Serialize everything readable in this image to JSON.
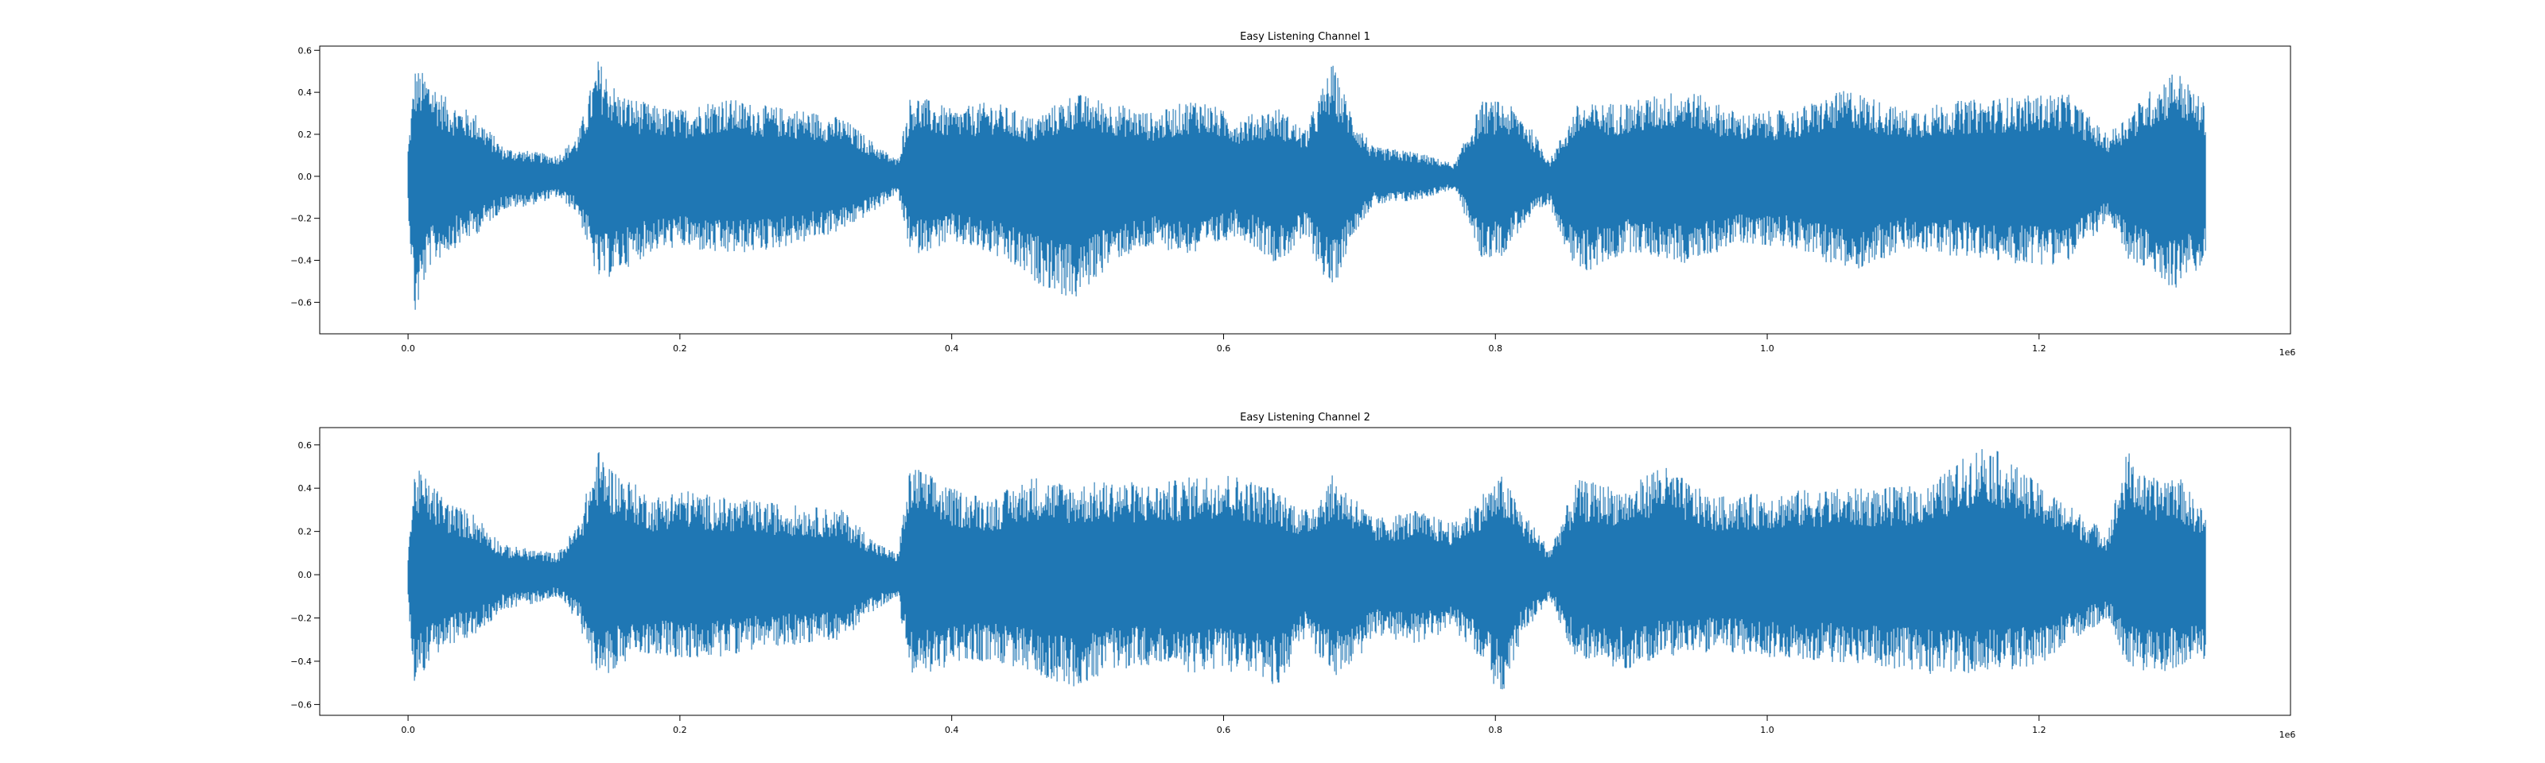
{
  "chart_data": [
    {
      "type": "line",
      "title": "Easy Listening Channel 1",
      "xlabel": "",
      "ylabel": "",
      "x_offset_label": "1e6",
      "xlim": [
        -65000,
        1385000
      ],
      "ylim": [
        -0.75,
        0.62
      ],
      "x_ticks": [
        0.0,
        0.2,
        0.4,
        0.6,
        0.8,
        1.0,
        1.2
      ],
      "x_tick_labels": [
        "0.0",
        "0.2",
        "0.4",
        "0.6",
        "0.8",
        "1.0",
        "1.2"
      ],
      "y_ticks": [
        -0.6,
        -0.4,
        -0.2,
        0.0,
        0.2,
        0.4,
        0.6
      ],
      "y_tick_labels": [
        "−0.6",
        "−0.4",
        "−0.2",
        "0.0",
        "0.2",
        "0.4",
        "0.6"
      ],
      "grid": false,
      "color": "#1f77b4",
      "series": [
        {
          "x_start": 0,
          "x_end": 1323000,
          "envelope_x": [
            0,
            5000,
            15000,
            30000,
            50000,
            70000,
            90000,
            110000,
            125000,
            140000,
            155000,
            180000,
            200000,
            230000,
            260000,
            290000,
            320000,
            345000,
            360000,
            370000,
            400000,
            430000,
            460000,
            490000,
            520000,
            550000,
            580000,
            610000,
            640000,
            660000,
            680000,
            695000,
            710000,
            740000,
            770000,
            790000,
            805000,
            820000,
            840000,
            860000,
            900000,
            940000,
            980000,
            1020000,
            1060000,
            1100000,
            1140000,
            1180000,
            1220000,
            1250000,
            1265000,
            1280000,
            1300000,
            1323000
          ],
          "envelope_max": [
            0.14,
            0.52,
            0.48,
            0.36,
            0.3,
            0.14,
            0.12,
            0.1,
            0.2,
            0.56,
            0.4,
            0.34,
            0.32,
            0.38,
            0.34,
            0.32,
            0.28,
            0.15,
            0.08,
            0.4,
            0.32,
            0.36,
            0.28,
            0.4,
            0.35,
            0.3,
            0.38,
            0.28,
            0.33,
            0.22,
            0.54,
            0.3,
            0.14,
            0.12,
            0.06,
            0.36,
            0.36,
            0.3,
            0.08,
            0.34,
            0.36,
            0.42,
            0.3,
            0.32,
            0.42,
            0.32,
            0.36,
            0.38,
            0.4,
            0.2,
            0.3,
            0.4,
            0.52,
            0.34
          ],
          "envelope_min": [
            -0.15,
            -0.69,
            -0.44,
            -0.36,
            -0.28,
            -0.16,
            -0.14,
            -0.1,
            -0.18,
            -0.51,
            -0.46,
            -0.36,
            -0.34,
            -0.38,
            -0.36,
            -0.32,
            -0.26,
            -0.16,
            -0.08,
            -0.38,
            -0.32,
            -0.38,
            -0.5,
            -0.6,
            -0.4,
            -0.34,
            -0.38,
            -0.28,
            -0.42,
            -0.3,
            -0.56,
            -0.28,
            -0.14,
            -0.12,
            -0.06,
            -0.4,
            -0.38,
            -0.24,
            -0.14,
            -0.48,
            -0.36,
            -0.42,
            -0.32,
            -0.34,
            -0.46,
            -0.36,
            -0.38,
            -0.42,
            -0.42,
            -0.22,
            -0.4,
            -0.46,
            -0.54,
            -0.42
          ]
        }
      ]
    },
    {
      "type": "line",
      "title": "Easy Listening Channel 2",
      "xlabel": "",
      "ylabel": "",
      "x_offset_label": "1e6",
      "xlim": [
        -65000,
        1385000
      ],
      "ylim": [
        -0.65,
        0.68
      ],
      "x_ticks": [
        0.0,
        0.2,
        0.4,
        0.6,
        0.8,
        1.0,
        1.2
      ],
      "x_tick_labels": [
        "0.0",
        "0.2",
        "0.4",
        "0.6",
        "0.8",
        "1.0",
        "1.2"
      ],
      "y_ticks": [
        -0.6,
        -0.4,
        -0.2,
        0.0,
        0.2,
        0.4,
        0.6
      ],
      "y_tick_labels": [
        "−0.6",
        "−0.4",
        "−0.2",
        "0.0",
        "0.2",
        "0.4",
        "0.6"
      ],
      "grid": false,
      "color": "#1f77b4",
      "series": [
        {
          "x_start": 0,
          "x_end": 1323000,
          "envelope_x": [
            0,
            5000,
            15000,
            30000,
            50000,
            70000,
            90000,
            110000,
            125000,
            140000,
            150000,
            180000,
            200000,
            230000,
            260000,
            290000,
            320000,
            345000,
            360000,
            370000,
            400000,
            430000,
            460000,
            490000,
            520000,
            550000,
            580000,
            600000,
            640000,
            660000,
            680000,
            695000,
            710000,
            740000,
            770000,
            790000,
            805000,
            820000,
            840000,
            860000,
            900000,
            920000,
            960000,
            1000000,
            1040000,
            1080000,
            1120000,
            1160000,
            1200000,
            1250000,
            1265000,
            1280000,
            1300000,
            1323000
          ],
          "envelope_max": [
            0.12,
            0.5,
            0.44,
            0.34,
            0.28,
            0.14,
            0.12,
            0.1,
            0.24,
            0.58,
            0.5,
            0.36,
            0.4,
            0.36,
            0.34,
            0.32,
            0.3,
            0.15,
            0.1,
            0.52,
            0.4,
            0.36,
            0.46,
            0.42,
            0.44,
            0.42,
            0.46,
            0.48,
            0.4,
            0.3,
            0.46,
            0.38,
            0.26,
            0.3,
            0.24,
            0.38,
            0.46,
            0.3,
            0.12,
            0.44,
            0.4,
            0.52,
            0.36,
            0.38,
            0.4,
            0.4,
            0.42,
            0.62,
            0.42,
            0.2,
            0.58,
            0.44,
            0.48,
            0.28
          ],
          "envelope_min": [
            -0.12,
            -0.56,
            -0.4,
            -0.34,
            -0.28,
            -0.16,
            -0.14,
            -0.1,
            -0.22,
            -0.5,
            -0.44,
            -0.36,
            -0.4,
            -0.38,
            -0.34,
            -0.32,
            -0.3,
            -0.16,
            -0.1,
            -0.48,
            -0.42,
            -0.4,
            -0.46,
            -0.52,
            -0.44,
            -0.42,
            -0.46,
            -0.44,
            -0.52,
            -0.3,
            -0.48,
            -0.44,
            -0.28,
            -0.32,
            -0.26,
            -0.4,
            -0.58,
            -0.28,
            -0.12,
            -0.4,
            -0.44,
            -0.38,
            -0.36,
            -0.38,
            -0.4,
            -0.42,
            -0.46,
            -0.46,
            -0.42,
            -0.2,
            -0.42,
            -0.46,
            -0.44,
            -0.4
          ]
        }
      ]
    }
  ]
}
